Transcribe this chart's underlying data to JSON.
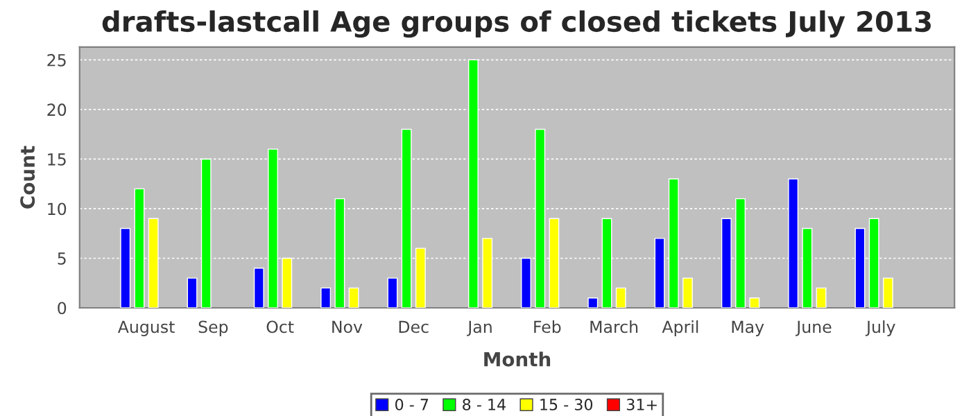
{
  "chart_data": {
    "type": "bar",
    "title": "drafts-lastcall Age groups of closed tickets July 2013",
    "xlabel": "Month",
    "ylabel": "Count",
    "categories": [
      "August",
      "Sep",
      "Oct",
      "Nov",
      "Dec",
      "Jan",
      "Feb",
      "March",
      "April",
      "May",
      "June",
      "July"
    ],
    "series": [
      {
        "name": "0 - 7",
        "color": "#0000ff",
        "values": [
          8,
          3,
          4,
          2,
          3,
          0,
          5,
          1,
          7,
          9,
          13,
          8
        ]
      },
      {
        "name": "8 - 14",
        "color": "#00ff00",
        "values": [
          12,
          15,
          16,
          11,
          18,
          25,
          18,
          9,
          13,
          11,
          8,
          9
        ]
      },
      {
        "name": "15 - 30",
        "color": "#ffff00",
        "values": [
          9,
          0,
          5,
          2,
          6,
          7,
          9,
          2,
          3,
          1,
          2,
          3
        ]
      },
      {
        "name": "31+",
        "color": "#ff0000",
        "values": [
          0,
          0,
          0,
          0,
          0,
          0,
          0,
          0,
          0,
          0,
          0,
          0
        ]
      }
    ],
    "ylim": [
      0,
      26.3
    ],
    "yticks": [
      0,
      5,
      10,
      15,
      20,
      25
    ],
    "grid": "y",
    "legend": "bottom"
  }
}
